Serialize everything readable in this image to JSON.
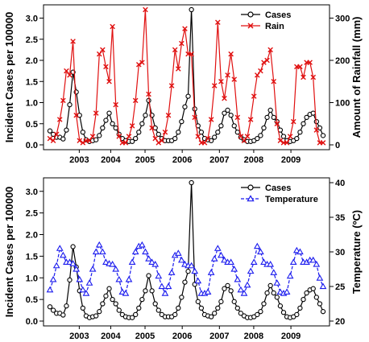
{
  "chart_data": [
    {
      "type": "line",
      "x_tick_labels": [
        "2003",
        "2004",
        "2005",
        "2006",
        "2007",
        "2008",
        "2009"
      ],
      "ylabel": "Incident Cases per 100000",
      "ylabel_right": "Amount of Rainfall (mm)",
      "ylim": [
        0,
        3.2
      ],
      "ylim_right": [
        0,
        320
      ],
      "y_ticks": [
        "0.0",
        "0.5",
        "1.0",
        "1.5",
        "2.0",
        "2.5",
        "3.0"
      ],
      "y_ticks_right": [
        "0",
        "100",
        "200",
        "300"
      ],
      "legend_position": "top-right",
      "series": [
        {
          "name": "Cases",
          "axis": "left",
          "color": "#000000",
          "marker": "open-circle",
          "values": [
            0.33,
            0.25,
            0.18,
            0.18,
            0.14,
            0.35,
            0.95,
            1.72,
            1.25,
            0.7,
            0.3,
            0.12,
            0.08,
            0.1,
            0.12,
            0.22,
            0.4,
            0.58,
            0.75,
            0.5,
            0.4,
            0.25,
            0.15,
            0.1,
            0.08,
            0.08,
            0.15,
            0.3,
            0.5,
            0.7,
            1.05,
            0.7,
            0.4,
            0.25,
            0.15,
            0.1,
            0.1,
            0.1,
            0.15,
            0.3,
            0.55,
            0.9,
            1.15,
            3.2,
            0.85,
            0.45,
            0.3,
            0.15,
            0.12,
            0.1,
            0.18,
            0.3,
            0.45,
            0.75,
            0.82,
            0.7,
            0.45,
            0.3,
            0.18,
            0.12,
            0.08,
            0.08,
            0.1,
            0.15,
            0.22,
            0.4,
            0.65,
            0.82,
            0.65,
            0.55,
            0.35,
            0.2,
            0.1,
            0.08,
            0.1,
            0.15,
            0.3,
            0.5,
            0.65,
            0.72,
            0.75,
            0.55,
            0.4,
            0.22
          ]
        },
        {
          "name": "Rain",
          "axis": "right",
          "color": "#e01010",
          "marker": "x",
          "values": [
            15,
            10,
            25,
            60,
            105,
            175,
            165,
            245,
            70,
            10,
            5,
            10,
            10,
            20,
            75,
            215,
            225,
            185,
            150,
            280,
            95,
            20,
            5,
            5,
            20,
            45,
            105,
            190,
            195,
            320,
            120,
            40,
            15,
            5,
            10,
            30,
            70,
            140,
            225,
            180,
            240,
            275,
            215,
            215,
            65,
            20,
            5,
            5,
            15,
            60,
            140,
            290,
            150,
            110,
            165,
            215,
            155,
            65,
            20,
            10,
            20,
            60,
            115,
            165,
            175,
            195,
            200,
            225,
            150,
            50,
            10,
            5,
            5,
            20,
            55,
            185,
            185,
            160,
            195,
            195,
            160,
            35,
            5,
            5
          ]
        }
      ]
    },
    {
      "type": "line",
      "x_tick_labels": [
        "2003",
        "2004",
        "2005",
        "2006",
        "2007",
        "2008",
        "2009"
      ],
      "ylabel": "Incident Cases per 100000",
      "ylabel_right": "Temperature (ºC)",
      "ylim": [
        0,
        3.2
      ],
      "ylim_right": [
        20,
        40
      ],
      "y_ticks": [
        "0.0",
        "0.5",
        "1.0",
        "1.5",
        "2.0",
        "2.5",
        "3.0"
      ],
      "y_ticks_right": [
        "20",
        "25",
        "30",
        "35",
        "40"
      ],
      "legend_position": "top-right",
      "series": [
        {
          "name": "Cases",
          "axis": "left",
          "color": "#000000",
          "marker": "open-circle",
          "values": [
            0.33,
            0.25,
            0.18,
            0.18,
            0.14,
            0.35,
            0.95,
            1.72,
            1.25,
            0.7,
            0.3,
            0.12,
            0.08,
            0.1,
            0.12,
            0.22,
            0.4,
            0.58,
            0.75,
            0.5,
            0.4,
            0.25,
            0.15,
            0.1,
            0.08,
            0.08,
            0.15,
            0.3,
            0.5,
            0.7,
            1.05,
            0.7,
            0.4,
            0.25,
            0.15,
            0.1,
            0.1,
            0.1,
            0.15,
            0.3,
            0.55,
            0.9,
            1.15,
            3.2,
            0.85,
            0.45,
            0.3,
            0.15,
            0.12,
            0.1,
            0.18,
            0.3,
            0.45,
            0.75,
            0.82,
            0.7,
            0.45,
            0.3,
            0.18,
            0.12,
            0.08,
            0.08,
            0.1,
            0.15,
            0.22,
            0.4,
            0.65,
            0.82,
            0.65,
            0.55,
            0.35,
            0.2,
            0.1,
            0.08,
            0.1,
            0.15,
            0.3,
            0.5,
            0.65,
            0.72,
            0.75,
            0.55,
            0.4,
            0.22
          ]
        },
        {
          "name": "Temperature",
          "axis": "right",
          "color": "#1a1aee",
          "marker": "open-triangle",
          "values": [
            24.5,
            26,
            28,
            30.5,
            29.5,
            28.5,
            28.5,
            28.3,
            27.5,
            26,
            24.5,
            24,
            25.5,
            27.5,
            30,
            31,
            30,
            28.5,
            28.3,
            28.2,
            27.5,
            26,
            24.2,
            24,
            26,
            28.5,
            30,
            30.8,
            31,
            30,
            29,
            28.5,
            28.2,
            26.5,
            25,
            24,
            25,
            27,
            29.5,
            29.8,
            28.8,
            28.2,
            28,
            28,
            27.2,
            25.8,
            24,
            24,
            24.2,
            27,
            29,
            30.5,
            29.5,
            28.8,
            28.5,
            28.5,
            27.5,
            26,
            24.5,
            24,
            25.2,
            27.2,
            28.5,
            30.8,
            30,
            28.5,
            28.2,
            28.2,
            27,
            25.5,
            24.2,
            24,
            24.2,
            26.5,
            28.5,
            30.2,
            30,
            28.5,
            28.5,
            28.8,
            28.8,
            28.2,
            26.2,
            25
          ]
        }
      ]
    }
  ]
}
